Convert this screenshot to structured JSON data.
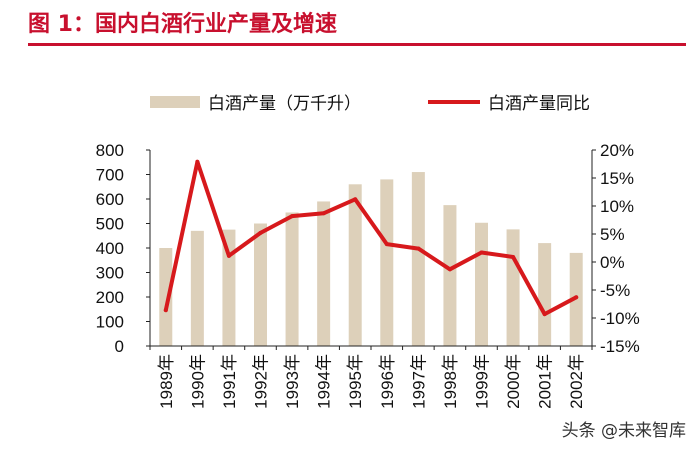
{
  "figure": {
    "title": "图 1：国内白酒行业产量及增速"
  },
  "watermark": "头条 @未来智库",
  "colors": {
    "accent": "#c8102e",
    "bar": "#ddd0ba",
    "line": "#d7191c"
  },
  "chart_data": {
    "type": "bar",
    "categories": [
      "1989年",
      "1990年",
      "1991年",
      "1992年",
      "1993年",
      "1994年",
      "1995年",
      "1996年",
      "1997年",
      "1998年",
      "1999年",
      "2000年",
      "2001年",
      "2002年"
    ],
    "series": [
      {
        "name": "白酒产量（万千升）",
        "type": "bar",
        "axis": "left",
        "values": [
          400,
          470,
          475,
          500,
          545,
          590,
          660,
          680,
          710,
          575,
          503,
          476,
          420,
          380
        ]
      },
      {
        "name": "白酒产量同比",
        "type": "line",
        "axis": "right",
        "values": [
          -8.6,
          17.9,
          1.1,
          5.2,
          8.2,
          8.7,
          11.2,
          3.2,
          2.4,
          -1.3,
          1.7,
          0.9,
          -9.3,
          -6.3
        ]
      }
    ],
    "y_left": {
      "ylim": [
        0,
        800
      ],
      "ticks": [
        0,
        100,
        200,
        300,
        400,
        500,
        600,
        700,
        800
      ]
    },
    "y_right": {
      "ylim": [
        -15,
        20
      ],
      "ticks": [
        "20%",
        "15%",
        "10%",
        "5%",
        "0%",
        "-5%",
        "-10%",
        "-15%"
      ]
    },
    "legend_position": "top",
    "grid": false
  }
}
